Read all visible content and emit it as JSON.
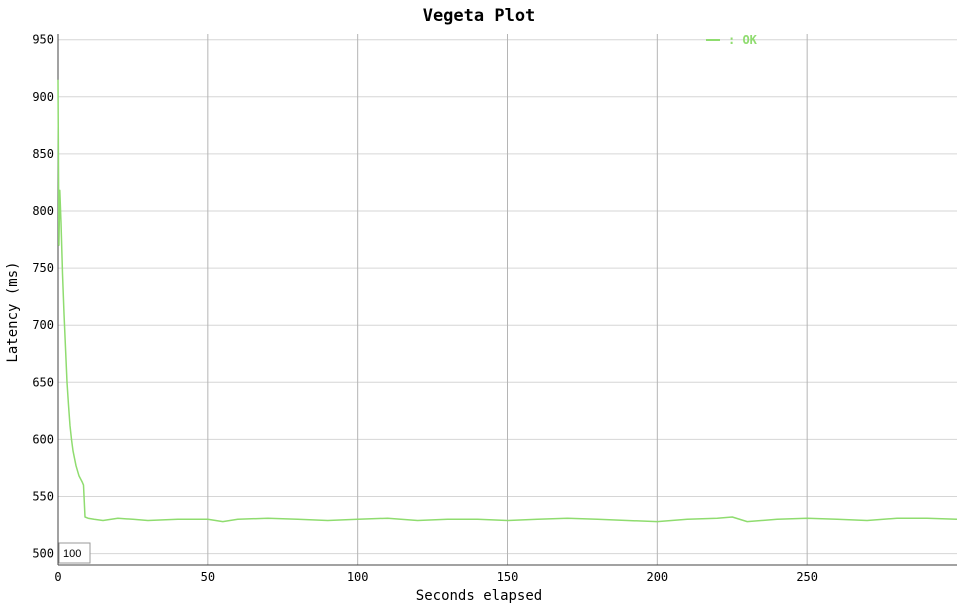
{
  "chart_data": {
    "type": "line",
    "title": "Vegeta Plot",
    "xlabel": "Seconds elapsed",
    "ylabel": "Latency (ms)",
    "xlim": [
      0,
      300
    ],
    "ylim": [
      490,
      955
    ],
    "x_ticks": [
      0,
      50,
      100,
      150,
      200,
      250
    ],
    "y_ticks": [
      500,
      550,
      600,
      650,
      700,
      750,
      800,
      850,
      900,
      950
    ],
    "grid": true,
    "legend_position": "top-right",
    "series": [
      {
        "name": ": OK",
        "color": "#8fdc6f",
        "points": [
          [
            0,
            915
          ],
          [
            0.3,
            770
          ],
          [
            0.6,
            818
          ],
          [
            1,
            790
          ],
          [
            1.5,
            745
          ],
          [
            2,
            710
          ],
          [
            2.5,
            680
          ],
          [
            3,
            650
          ],
          [
            3.5,
            630
          ],
          [
            4,
            612
          ],
          [
            4.5,
            600
          ],
          [
            5,
            590
          ],
          [
            6,
            577
          ],
          [
            7,
            568
          ],
          [
            8,
            563
          ],
          [
            8.5,
            560
          ],
          [
            9,
            532
          ],
          [
            10,
            531
          ],
          [
            12,
            530
          ],
          [
            15,
            529
          ],
          [
            20,
            531
          ],
          [
            25,
            530
          ],
          [
            30,
            529
          ],
          [
            40,
            530
          ],
          [
            50,
            530
          ],
          [
            55,
            528
          ],
          [
            60,
            530
          ],
          [
            70,
            531
          ],
          [
            80,
            530
          ],
          [
            90,
            529
          ],
          [
            100,
            530
          ],
          [
            110,
            531
          ],
          [
            120,
            529
          ],
          [
            130,
            530
          ],
          [
            140,
            530
          ],
          [
            150,
            529
          ],
          [
            160,
            530
          ],
          [
            170,
            531
          ],
          [
            180,
            530
          ],
          [
            190,
            529
          ],
          [
            200,
            528
          ],
          [
            210,
            530
          ],
          [
            220,
            531
          ],
          [
            225,
            532
          ],
          [
            230,
            528
          ],
          [
            240,
            530
          ],
          [
            250,
            531
          ],
          [
            260,
            530
          ],
          [
            270,
            529
          ],
          [
            280,
            531
          ],
          [
            290,
            531
          ],
          [
            300,
            530
          ]
        ]
      }
    ]
  },
  "roller": {
    "value": "100"
  }
}
